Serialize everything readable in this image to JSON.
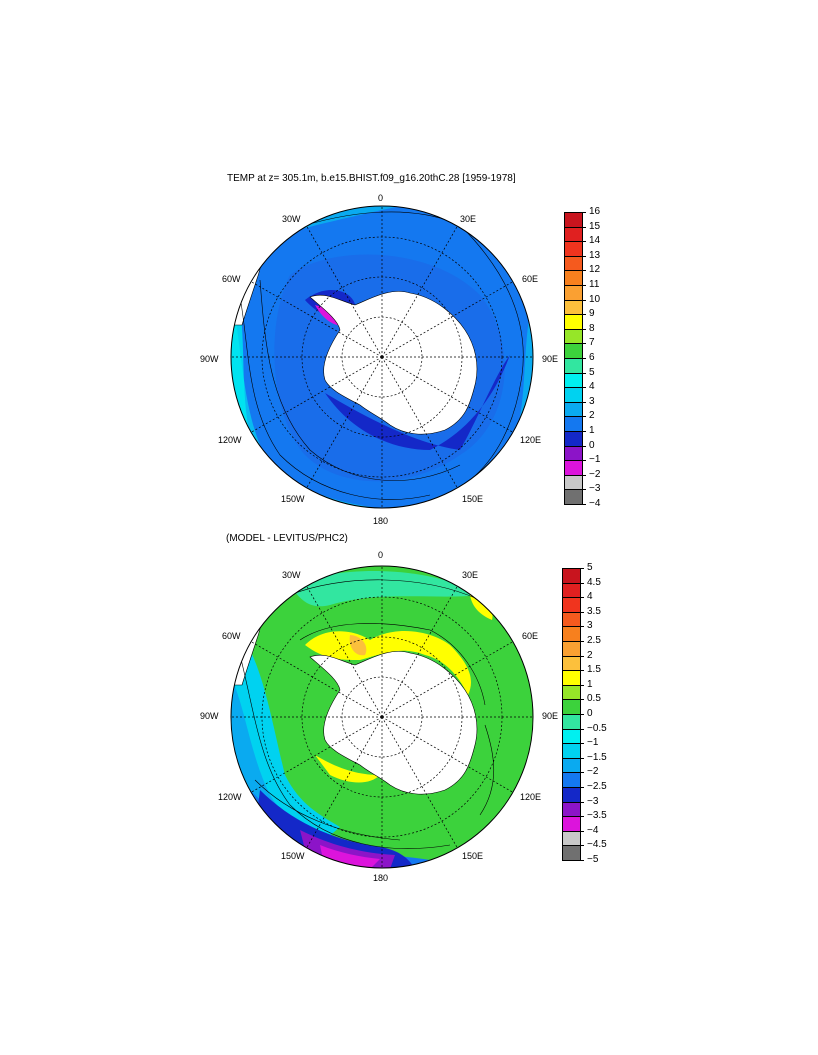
{
  "panels": [
    {
      "title": "TEMP at z= 305.1m, b.e15.BHIST.f09_g16.20thC.28 [1959-1978]",
      "lon_labels": {
        "n": "0",
        "nne": "30E",
        "ene": "60E",
        "e": "90E",
        "ese": "120E",
        "sse": "150E",
        "s": "180",
        "ssw": "150W",
        "wsw": "120W",
        "w": "90W",
        "wnw": "60W",
        "nnw": "30W"
      },
      "colorbar": {
        "labels": [
          "16",
          "15",
          "14",
          "13",
          "12",
          "11",
          "10",
          "9",
          "8",
          "7",
          "6",
          "5",
          "4",
          "3",
          "2",
          "1",
          "0",
          "−1",
          "−2",
          "−3",
          "−4"
        ],
        "colors": [
          "#c8141e",
          "#e02020",
          "#f0341e",
          "#f55a1e",
          "#f7801e",
          "#faa032",
          "#fcc03c",
          "#ffff00",
          "#96e628",
          "#3cd23c",
          "#32e6a0",
          "#00f0f0",
          "#00d2f0",
          "#0aaaf0",
          "#1478f0",
          "#1428c8",
          "#8c14c8",
          "#dc14dc",
          "#c8c8c8",
          "#707070"
        ]
      }
    },
    {
      "title": "(MODEL - LEVITUS/PHC2)",
      "lon_labels": {
        "n": "0",
        "nne": "30E",
        "ene": "60E",
        "e": "90E",
        "ese": "120E",
        "sse": "150E",
        "s": "180",
        "ssw": "150W",
        "wsw": "120W",
        "w": "90W",
        "wnw": "60W",
        "nnw": "30W"
      },
      "colorbar": {
        "labels": [
          "5",
          "4.5",
          "4",
          "3.5",
          "3",
          "2.5",
          "2",
          "1.5",
          "1",
          "0.5",
          "0",
          "−0.5",
          "−1",
          "−1.5",
          "−2",
          "−2.5",
          "−3",
          "−3.5",
          "−4",
          "−4.5",
          "−5"
        ],
        "colors": [
          "#c8141e",
          "#e02020",
          "#f0341e",
          "#f55a1e",
          "#f7801e",
          "#faa032",
          "#fcc03c",
          "#ffff00",
          "#96e628",
          "#3cd23c",
          "#32e6a0",
          "#00f0f0",
          "#00d2f0",
          "#0aaaf0",
          "#1478f0",
          "#1428c8",
          "#8c14c8",
          "#dc14dc",
          "#c8c8c8",
          "#707070"
        ]
      }
    }
  ],
  "colors": {
    "land": "#ffffff",
    "graticule": "#000000",
    "coast": "#000000"
  }
}
